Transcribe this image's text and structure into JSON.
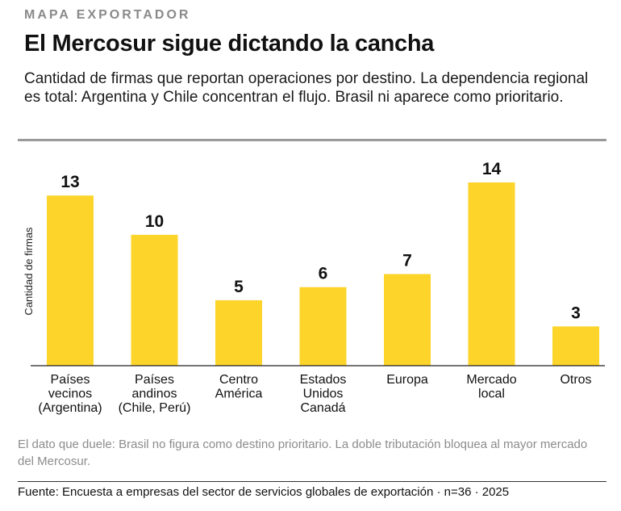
{
  "header": {
    "kicker": "MAPA EXPORTADOR",
    "title": "El Mercosur sigue dictando la cancha",
    "subtitle": "Cantidad de firmas que reportan operaciones por destino. La dependencia regional es total: Argentina y Chile concentran el flujo. Brasil ni aparece como prioritario."
  },
  "chart_data": {
    "type": "bar",
    "title": "",
    "xlabel": "",
    "ylabel": "Cantidad de firmas",
    "categories": [
      [
        "Países",
        "vecinos",
        "(Argentina)"
      ],
      [
        "Países",
        "andinos",
        "(Chile, Perú)"
      ],
      [
        "Centro",
        "América"
      ],
      [
        "Estados",
        "Unidos",
        "Canadá"
      ],
      [
        "Europa"
      ],
      [
        "Mercado",
        "local"
      ],
      [
        "Otros"
      ]
    ],
    "values": [
      13,
      10,
      5,
      6,
      7,
      14,
      3
    ],
    "ylim": [
      0,
      14
    ],
    "grid": false,
    "bar_color": "#fcd42a"
  },
  "footer": {
    "note": "El dato que duele: Brasil no figura como destino prioritario. La doble tributación bloquea al mayor mercado del Mercosur.",
    "source": "Fuente: Encuesta a empresas del sector de servicios globales de exportación · n=36 · 2025"
  }
}
